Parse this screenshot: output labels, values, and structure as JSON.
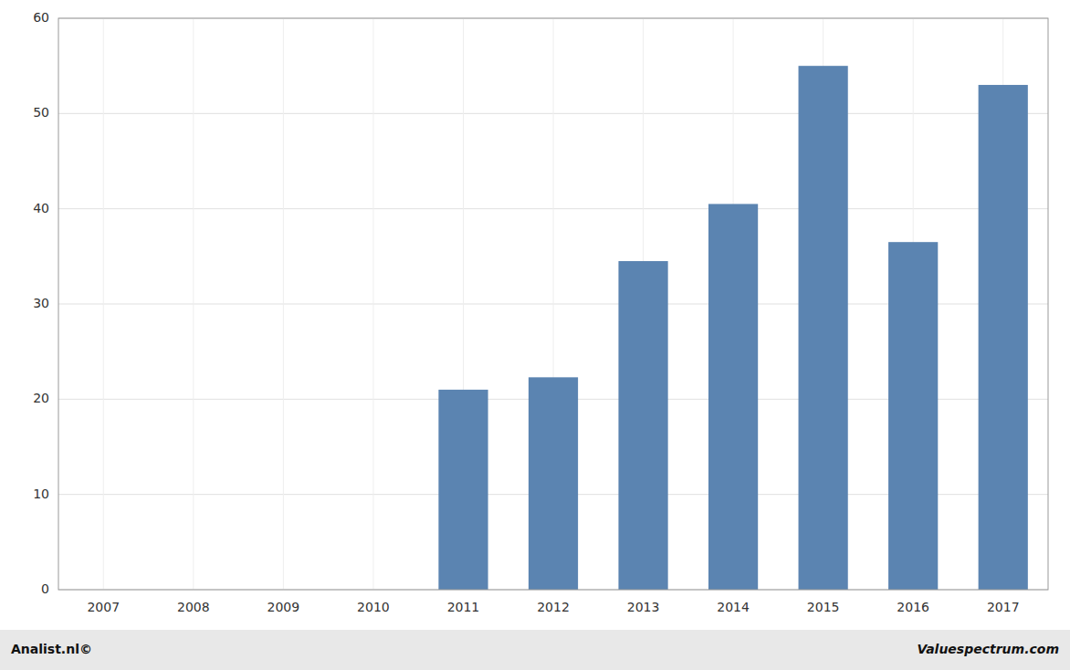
{
  "chart_data": {
    "type": "bar",
    "categories": [
      "2007",
      "2008",
      "2009",
      "2010",
      "2011",
      "2012",
      "2013",
      "2014",
      "2015",
      "2016",
      "2017"
    ],
    "values": [
      0,
      0,
      0,
      0,
      21.0,
      22.3,
      34.5,
      40.5,
      55.0,
      36.5,
      53.0
    ],
    "color": "#5b84b1",
    "ylim": [
      0,
      60
    ],
    "yticks": [
      0,
      10,
      20,
      30,
      40,
      50,
      60
    ],
    "grid": true,
    "annotations": [
      "Analist.nl©",
      "Valuespectrum.com"
    ]
  }
}
